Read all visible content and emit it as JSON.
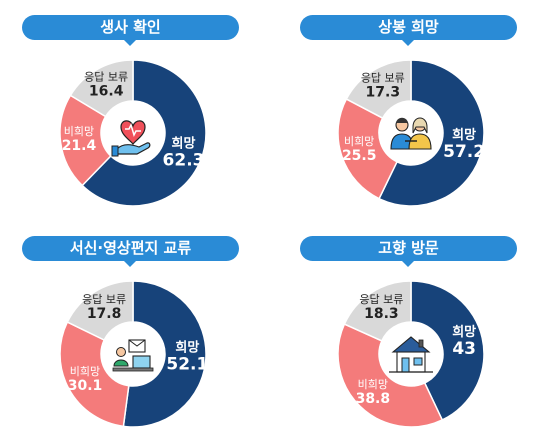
{
  "colors": {
    "yes": "#17437a",
    "no": "#f47b7b",
    "pending": "#d9d9d9",
    "pill": "#2a8bd6"
  },
  "chart_data": [
    {
      "type": "pie",
      "title": "생사 확인",
      "icon": "heart-hand-icon",
      "slices": [
        {
          "label": "희망",
          "value": 62.3
        },
        {
          "label": "비희망",
          "value": 21.4
        },
        {
          "label": "응답 보류",
          "value": 16.4
        }
      ]
    },
    {
      "type": "pie",
      "title": "상봉 희망",
      "icon": "reunion-couple-icon",
      "slices": [
        {
          "label": "희망",
          "value": 57.2
        },
        {
          "label": "비희망",
          "value": 25.5
        },
        {
          "label": "응답 보류",
          "value": 17.3
        }
      ]
    },
    {
      "type": "pie",
      "title": "서신·영상편지 교류",
      "icon": "video-letter-icon",
      "slices": [
        {
          "label": "희망",
          "value": 52.1
        },
        {
          "label": "비희망",
          "value": 30.1
        },
        {
          "label": "응답 보류",
          "value": 17.8
        }
      ]
    },
    {
      "type": "pie",
      "title": "고향 방문",
      "icon": "hometown-house-icon",
      "slices": [
        {
          "label": "희망",
          "value": 43.0
        },
        {
          "label": "비희망",
          "value": 38.8
        },
        {
          "label": "응답 보류",
          "value": 18.3
        }
      ]
    }
  ]
}
